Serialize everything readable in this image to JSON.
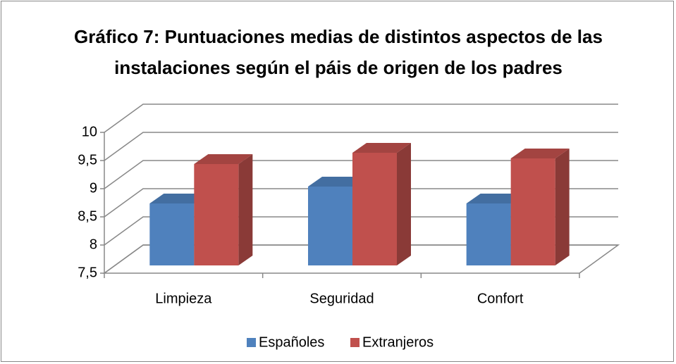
{
  "chart_data": {
    "type": "bar3d",
    "title": "Gráfico 7: Puntuaciones medias de distintos aspectos de las instalaciones según el páis de origen de los padres",
    "categories": [
      "Limpieza",
      "Seguridad",
      "Confort"
    ],
    "series": [
      {
        "name": "Españoles",
        "color": "#4f81bd",
        "values": [
          8.6,
          8.9,
          8.6
        ]
      },
      {
        "name": "Extranjeros",
        "color": "#c0504d",
        "values": [
          9.3,
          9.5,
          9.4
        ]
      }
    ],
    "ylim": [
      7.5,
      10
    ],
    "yticks": [
      {
        "value": 7.5,
        "label": "7,5"
      },
      8,
      {
        "value": 8.5,
        "label": "8,5"
      },
      9,
      {
        "value": 9.5,
        "label": "9,5"
      },
      10
    ],
    "grid": true,
    "legend": "bottom"
  }
}
